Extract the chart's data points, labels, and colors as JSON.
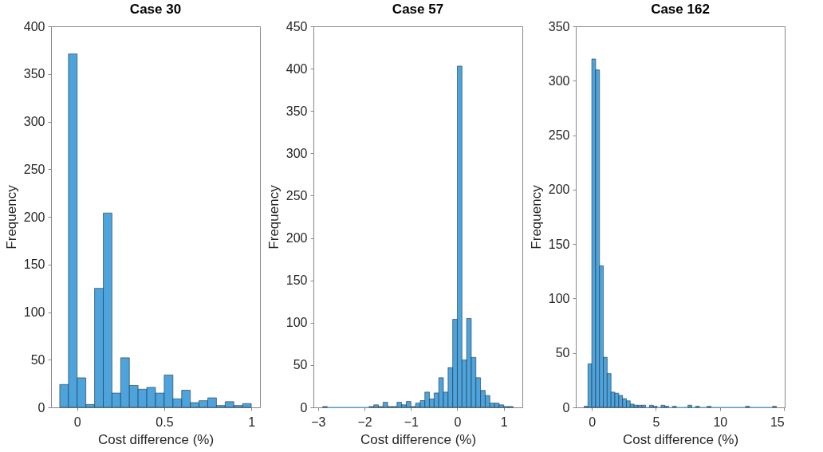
{
  "chart_data": [
    {
      "type": "histogram",
      "title": "Case 30",
      "xlabel": "Cost difference (%)",
      "ylabel": "Frequency",
      "color": "#4da3db",
      "bins": [
        -0.1,
        -0.05,
        0,
        0.05,
        0.1,
        0.15,
        0.2,
        0.25,
        0.3,
        0.35,
        0.4,
        0.45,
        0.5,
        0.55,
        0.6,
        0.65,
        0.7,
        0.75,
        0.8,
        0.85,
        0.9,
        0.95,
        1.0
      ],
      "values": [
        24,
        371,
        31,
        3,
        125,
        204,
        15,
        52,
        23,
        19,
        21,
        15,
        34,
        9,
        18,
        5,
        7,
        10,
        2,
        6,
        2,
        4
      ],
      "xlim": [
        -0.15,
        1.05
      ],
      "xticks": [
        0,
        0.5,
        1
      ],
      "ylim": [
        0,
        400
      ],
      "yticks": [
        0,
        50,
        100,
        150,
        200,
        250,
        300,
        350,
        400
      ]
    },
    {
      "type": "histogram",
      "title": "Case 57",
      "xlabel": "Cost difference (%)",
      "ylabel": "Frequency",
      "color": "#4da3db",
      "bins": [
        -2.9,
        -2.8,
        -2.7,
        -2.6,
        -2.5,
        -2.4,
        -2.3,
        -2.2,
        -2.1,
        -2.0,
        -1.9,
        -1.8,
        -1.7,
        -1.6,
        -1.5,
        -1.4,
        -1.3,
        -1.2,
        -1.1,
        -1.0,
        -0.9,
        -0.8,
        -0.7,
        -0.6,
        -0.5,
        -0.4,
        -0.3,
        -0.2,
        -0.1,
        0,
        0.1,
        0.2,
        0.3,
        0.4,
        0.5,
        0.6,
        0.7,
        0.8,
        0.9,
        1.0,
        1.1,
        1.2
      ],
      "values": [
        1,
        0,
        0,
        0,
        0,
        0,
        0,
        0,
        0,
        0,
        1,
        3,
        1,
        6,
        1,
        1,
        6,
        3,
        7,
        1,
        5,
        8,
        18,
        10,
        17,
        35,
        18,
        47,
        104,
        403,
        56,
        105,
        59,
        35,
        20,
        14,
        5,
        5,
        3,
        1,
        1
      ],
      "xlim": [
        -3.1,
        1.4
      ],
      "xticks": [
        -3,
        -2,
        -1,
        0,
        1
      ],
      "ylim": [
        0,
        450
      ],
      "yticks": [
        0,
        50,
        100,
        150,
        200,
        250,
        300,
        350,
        400,
        450
      ]
    },
    {
      "type": "histogram",
      "title": "Case 162",
      "xlabel": "Cost difference (%)",
      "ylabel": "Frequency",
      "color": "#4da3db",
      "bins": [
        -0.6,
        -0.3,
        0,
        0.3,
        0.6,
        0.9,
        1.2,
        1.5,
        1.8,
        2.1,
        2.4,
        2.7,
        3.0,
        3.3,
        3.6,
        3.9,
        4.2,
        4.5,
        4.8,
        5.1,
        5.4,
        5.7,
        6.0,
        6.3,
        6.6,
        6.9,
        7.2,
        7.5,
        7.8,
        8.1,
        8.4,
        8.7,
        9.0,
        9.3,
        9.6,
        9.9,
        10.2,
        10.5,
        10.8,
        11.1,
        11.4,
        11.7,
        12.0,
        12.3,
        12.6,
        12.9,
        13.2,
        13.5,
        13.8,
        14.1,
        14.4
      ],
      "values": [
        1,
        40,
        320,
        310,
        130,
        46,
        31,
        14,
        13,
        11,
        8,
        6,
        3,
        2,
        2,
        2,
        0,
        2,
        1,
        0,
        2,
        1,
        0,
        1,
        0,
        0,
        0,
        2,
        0,
        1,
        0,
        0,
        1,
        0,
        0,
        0,
        0,
        0,
        0,
        0,
        0,
        0,
        1,
        0,
        0,
        0,
        0,
        0,
        0,
        1
      ],
      "xlim": [
        -1.25,
        15.05
      ],
      "xticks": [
        0,
        5,
        10,
        15
      ],
      "ylim": [
        0,
        350
      ],
      "yticks": [
        0,
        50,
        100,
        150,
        200,
        250,
        300,
        350
      ]
    }
  ]
}
